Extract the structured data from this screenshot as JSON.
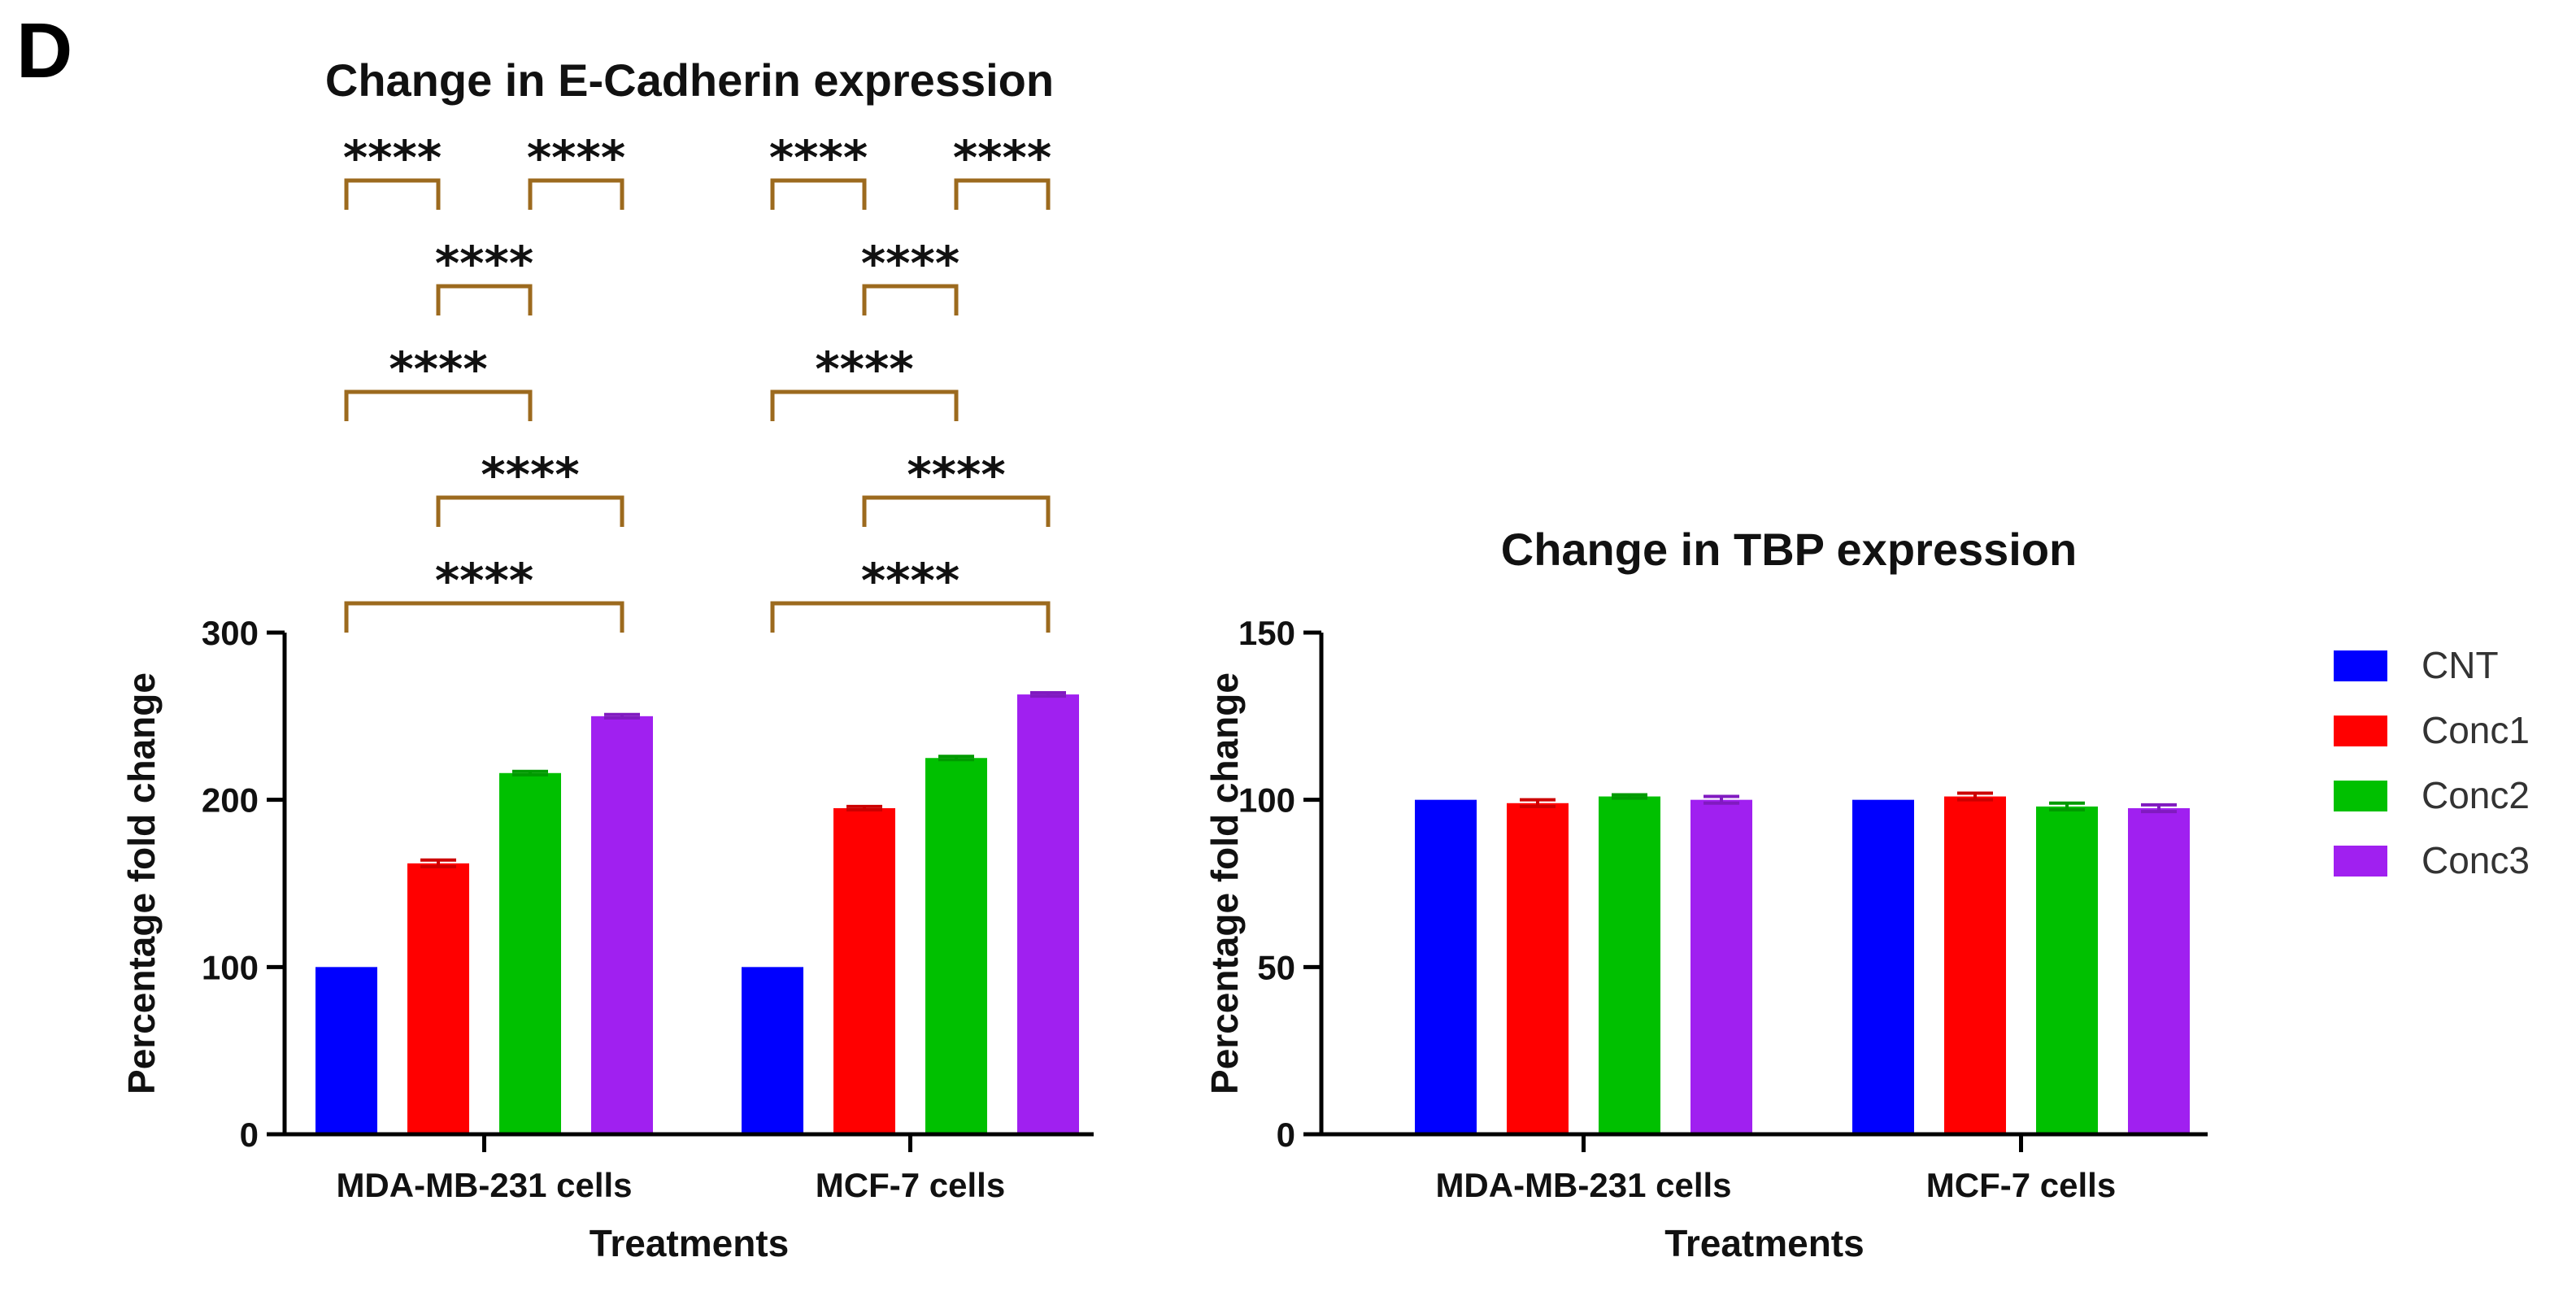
{
  "panel_label": "D",
  "legend": {
    "items": [
      {
        "label": "CNT",
        "color": "#0000ff"
      },
      {
        "label": "Conc1",
        "color": "#ff0000"
      },
      {
        "label": "Conc2",
        "color": "#00c000"
      },
      {
        "label": "Conc3",
        "color": "#a020f0"
      }
    ]
  },
  "chart_data": [
    {
      "type": "bar",
      "title": "Change in E-Cadherin expression",
      "xlabel": "Treatments",
      "ylabel": "Percentage fold change",
      "ylim": [
        0,
        300
      ],
      "yticks": [
        0,
        100,
        200,
        300
      ],
      "categories": [
        "MDA-MB-231 cells",
        "MCF-7 cells"
      ],
      "series": [
        {
          "name": "CNT",
          "values": [
            100,
            100
          ],
          "errors": [
            0,
            0
          ]
        },
        {
          "name": "Conc1",
          "values": [
            162,
            195
          ],
          "errors": [
            2,
            1
          ]
        },
        {
          "name": "Conc2",
          "values": [
            216,
            225
          ],
          "errors": [
            1,
            1
          ]
        },
        {
          "name": "Conc3",
          "values": [
            250,
            263
          ],
          "errors": [
            1,
            1
          ]
        }
      ],
      "significance": [
        {
          "category": 0,
          "from": 0,
          "to": 3,
          "level": 0,
          "label": "****"
        },
        {
          "category": 0,
          "from": 1,
          "to": 3,
          "level": 1,
          "label": "****"
        },
        {
          "category": 0,
          "from": 0,
          "to": 2,
          "level": 2,
          "label": "****"
        },
        {
          "category": 0,
          "from": 1,
          "to": 2,
          "level": 3,
          "label": "****"
        },
        {
          "category": 0,
          "from": 0,
          "to": 1,
          "level": 4,
          "label": "****"
        },
        {
          "category": 0,
          "from": 2,
          "to": 3,
          "level": 4,
          "label": "****"
        },
        {
          "category": 1,
          "from": 0,
          "to": 3,
          "level": 0,
          "label": "****"
        },
        {
          "category": 1,
          "from": 1,
          "to": 3,
          "level": 1,
          "label": "****"
        },
        {
          "category": 1,
          "from": 0,
          "to": 2,
          "level": 2,
          "label": "****"
        },
        {
          "category": 1,
          "from": 1,
          "to": 2,
          "level": 3,
          "label": "****"
        },
        {
          "category": 1,
          "from": 0,
          "to": 1,
          "level": 4,
          "label": "****"
        },
        {
          "category": 1,
          "from": 2,
          "to": 3,
          "level": 4,
          "label": "****"
        }
      ]
    },
    {
      "type": "bar",
      "title": "Change in TBP expression",
      "xlabel": "Treatments",
      "ylabel": "Percentage fold change",
      "ylim": [
        0,
        150
      ],
      "yticks": [
        0,
        50,
        100,
        150
      ],
      "categories": [
        "MDA-MB-231 cells",
        "MCF-7 cells"
      ],
      "series": [
        {
          "name": "CNT",
          "values": [
            100,
            100
          ],
          "errors": [
            0,
            0
          ]
        },
        {
          "name": "Conc1",
          "values": [
            99,
            101
          ],
          "errors": [
            1,
            1
          ]
        },
        {
          "name": "Conc2",
          "values": [
            101,
            98
          ],
          "errors": [
            0.5,
            1
          ]
        },
        {
          "name": "Conc3",
          "values": [
            100,
            97.5
          ],
          "errors": [
            1,
            1
          ]
        }
      ],
      "significance": []
    }
  ]
}
